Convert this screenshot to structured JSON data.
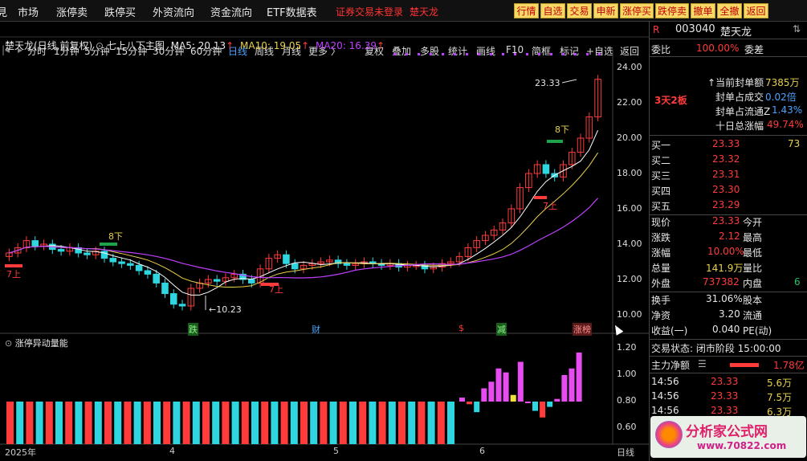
{
  "top_menu": {
    "left_label": "見",
    "items": [
      "市场",
      "涨停卖",
      "跌停买",
      "外资流向",
      "资金流向",
      "ETF数据表"
    ],
    "notice": "证券交易未登录",
    "notice_stock": "楚天龙",
    "quick_buttons": [
      "行情",
      "自选",
      "交易",
      "申新",
      "涨停买",
      "跌停卖",
      "撤单",
      "全撤",
      "返回"
    ]
  },
  "period_bar": {
    "periods": [
      "分时",
      "1分钟",
      "5分钟",
      "15分钟",
      "30分钟",
      "60分钟",
      "日线",
      "周线",
      "月线",
      "更多"
    ],
    "active": "日线",
    "tools": [
      "复权",
      "叠加",
      "多股",
      "统计",
      "画线",
      "F10",
      "简框",
      "标记",
      "+自选",
      "返回"
    ]
  },
  "chart_title": {
    "stock": "楚天龙(日线,前复权)",
    "indicator": "七上八下主图",
    "ma5": "MA5: 20.13",
    "ma10": "MA10: 19.05",
    "ma20": "MA20: 16.39"
  },
  "sub_chart_title": "涨停异动量能",
  "price_axis": [
    "24.00",
    "22.00",
    "20.00",
    "18.00",
    "16.00",
    "14.00",
    "12.00",
    "10.00"
  ],
  "sub_axis": [
    "1.20",
    "1.00",
    "0.80",
    "0.60"
  ],
  "date_axis": [
    "2025年",
    "4",
    "5",
    "6"
  ],
  "period_label_bottom": "日线",
  "annotations": {
    "high": "23.33",
    "low": "10.23",
    "up7_label": "7上",
    "down8_label": "8下",
    "event_labels": [
      "跌",
      "财",
      "$",
      "减",
      "涨榜"
    ]
  },
  "right_panel": {
    "code": "003040",
    "name": "楚天龙",
    "weibi_label": "委比",
    "weibi_value": "100.00%",
    "weicha_label": "委差",
    "streak": "3天2板",
    "info": [
      {
        "label": "当前封单额",
        "value": "7385万"
      },
      {
        "label": "封单占成交",
        "value": "0.02倍"
      },
      {
        "label": "封单占流通Z",
        "value": "1.43%"
      },
      {
        "label": "十日总涨幅",
        "value": "49.74%"
      }
    ],
    "bids": [
      {
        "label": "买一",
        "price": "23.33",
        "vol": "73"
      },
      {
        "label": "买二",
        "price": "23.32",
        "vol": ""
      },
      {
        "label": "买三",
        "price": "23.31",
        "vol": ""
      },
      {
        "label": "买四",
        "price": "23.30",
        "vol": ""
      },
      {
        "label": "买五",
        "price": "23.29",
        "vol": ""
      }
    ],
    "quote": [
      {
        "l1": "现价",
        "v1": "23.33",
        "l2": "今开",
        "v2": ""
      },
      {
        "l1": "涨跌",
        "v1": "2.12",
        "l2": "最高",
        "v2": ""
      },
      {
        "l1": "涨幅",
        "v1": "10.00%",
        "l2": "最低",
        "v2": ""
      },
      {
        "l1": "总量",
        "v1": "141.9万",
        "l2": "量比",
        "v2": ""
      },
      {
        "l1": "外盘",
        "v1": "737382",
        "l2": "内盘",
        "v2": "6"
      }
    ],
    "fund": [
      {
        "l1": "换手",
        "v1": "31.06%",
        "l2": "股本"
      },
      {
        "l1": "净资",
        "v1": "3.20",
        "l2": "流通"
      },
      {
        "l1": "收益(一)",
        "v1": "0.040",
        "l2": "PE(动)"
      }
    ],
    "trade_status": "交易状态: 闭市阶段 15:00:00",
    "main_flow_label": "主力净额",
    "main_flow_value": "1.78亿",
    "ticks": [
      {
        "time": "14:56",
        "price": "23.33",
        "vol": "5.6万"
      },
      {
        "time": "14:56",
        "price": "23.33",
        "vol": "7.5万"
      },
      {
        "time": "14:56",
        "price": "23.33",
        "vol": "6.3万"
      }
    ]
  },
  "watermark": {
    "title": "分析家公式网",
    "url": "www.70822.com"
  },
  "colors": {
    "up": "#ff3b3b",
    "down": "#2fd6e0",
    "ma5": "#ffffff",
    "ma10": "#e8d04a",
    "ma20": "#c040ff",
    "active_tab": "#4aa3ff",
    "quick_btn": "#f7d864"
  },
  "chart_data": [
    {
      "type": "candlestick",
      "title": "楚天龙(日线,前复权)",
      "x": [
        "2025-03",
        "2025-04",
        "2025-05",
        "2025-06"
      ],
      "ylim": [
        10,
        24
      ],
      "series": [
        {
          "name": "MA5",
          "last": 20.13
        },
        {
          "name": "MA10",
          "last": 19.05
        },
        {
          "name": "MA20",
          "last": 16.39
        }
      ],
      "close_values": [
        13.5,
        13.8,
        14.2,
        13.9,
        14.0,
        13.7,
        13.6,
        13.8,
        13.5,
        13.4,
        13.6,
        13.2,
        13.0,
        12.9,
        12.8,
        12.5,
        12.3,
        11.8,
        11.2,
        10.6,
        10.5,
        11.5,
        11.8,
        12.0,
        11.9,
        12.1,
        12.3,
        12.0,
        11.8,
        12.6,
        13.2,
        13.4,
        12.9,
        12.6,
        12.8,
        12.9,
        13.0,
        13.1,
        12.9,
        12.8,
        12.9,
        13.0,
        12.9,
        12.8,
        12.9,
        12.7,
        12.8,
        12.8,
        12.6,
        12.7,
        12.9,
        13.0,
        13.3,
        13.8,
        14.2,
        14.5,
        14.8,
        15.2,
        16.0,
        17.2,
        18.0,
        18.5,
        18.0,
        17.8,
        18.5,
        19.2,
        20.0,
        21.2,
        23.33
      ],
      "labels": {
        "high": 23.33,
        "low": 10.23
      }
    },
    {
      "type": "bar",
      "title": "涨停异动量能",
      "ylim": [
        0.6,
        1.2
      ],
      "values": [
        0.83,
        0.78,
        0.72,
        0.9,
        0.95,
        1.05,
        1.02,
        0.85,
        1.1,
        0.8,
        0.73,
        0.68,
        0.76,
        0.82,
        1.0,
        1.05,
        1.17
      ]
    }
  ]
}
